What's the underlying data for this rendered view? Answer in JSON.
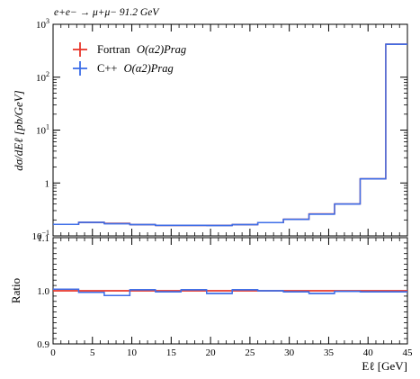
{
  "chart_data": [
    {
      "type": "line",
      "panel": "main",
      "title": "e+e− → μ+μ− 91.2 GeV",
      "ylabel": "dσ/dEℓ [pb/GeV]",
      "yscale": "log",
      "xlim": [
        0,
        45
      ],
      "ylim": [
        0.1,
        1000
      ],
      "y_tick_labels": [
        "10−1",
        "1",
        "101",
        "102",
        "103"
      ],
      "bin_edges": [
        0,
        3.25,
        6.5,
        9.75,
        13,
        16.25,
        19.5,
        22.75,
        26,
        29.25,
        32.5,
        35.75,
        39,
        42.25,
        45
      ],
      "series": [
        {
          "name": "Fortran O(α2)Prag",
          "color": "#e8362b",
          "values": [
            0.165,
            0.18,
            0.172,
            0.163,
            0.158,
            0.158,
            0.158,
            0.163,
            0.178,
            0.205,
            0.26,
            0.4,
            1.2,
            420
          ]
        },
        {
          "name": "C++ O(α2)Prag",
          "color": "#3d6ee8",
          "values": [
            0.165,
            0.18,
            0.17,
            0.163,
            0.158,
            0.158,
            0.157,
            0.163,
            0.178,
            0.205,
            0.258,
            0.4,
            1.2,
            420
          ]
        }
      ],
      "legend": "top-left"
    },
    {
      "type": "line",
      "panel": "ratio",
      "ylabel": "Ratio",
      "xlabel": "Eℓ [GeV]",
      "xlim": [
        0,
        45
      ],
      "ylim": [
        0.9,
        1.1
      ],
      "x_tick_labels": [
        "0",
        "5",
        "10",
        "15",
        "20",
        "25",
        "30",
        "35",
        "40",
        "45"
      ],
      "y_tick_labels": [
        "0.9",
        "1.0",
        "1.1"
      ],
      "bin_edges": [
        0,
        3.25,
        6.5,
        9.75,
        13,
        16.25,
        19.5,
        22.75,
        26,
        29.25,
        32.5,
        35.75,
        39,
        42.25,
        45
      ],
      "series": [
        {
          "name": "Fortran O(α2)Prag",
          "color": "#e8362b",
          "values": [
            1.0,
            1.0,
            1.0,
            1.0,
            1.0,
            1.0,
            1.0,
            1.0,
            1.0,
            1.0,
            1.0,
            1.0,
            1.0,
            1.0
          ]
        },
        {
          "name": "C++ O(α2)Prag",
          "color": "#3d6ee8",
          "values": [
            1.003,
            0.997,
            0.991,
            1.002,
            0.998,
            1.002,
            0.995,
            1.002,
            1.0,
            0.998,
            0.995,
            0.999,
            0.998,
            0.998
          ]
        }
      ]
    }
  ],
  "legend": {
    "items": [
      {
        "name": "Fortran",
        "rest": "O(α2)Prag",
        "color": "#e8362b"
      },
      {
        "name": "C++",
        "rest": "O(α2)Prag",
        "color": "#3d6ee8"
      }
    ]
  }
}
